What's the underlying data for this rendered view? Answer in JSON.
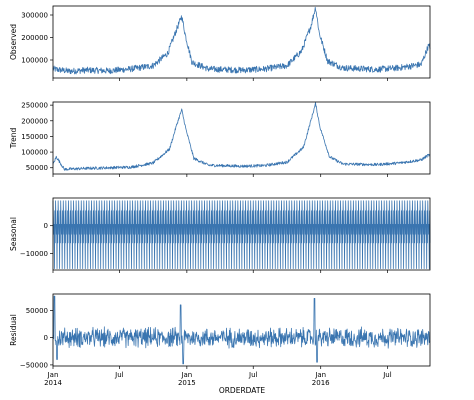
{
  "chart_data": [
    {
      "type": "line",
      "ylabel": "Observed",
      "ylim": [
        20000,
        340000
      ],
      "yticks": [
        100000,
        200000,
        300000
      ],
      "ytick_labels": [
        "100000",
        "200000",
        "300000"
      ],
      "series": [
        {
          "key_points": [
            [
              "2014-01-01",
              60000
            ],
            [
              "2014-02-15",
              50000
            ],
            [
              "2014-04-01",
              55000
            ],
            [
              "2014-06-01",
              52000
            ],
            [
              "2014-08-01",
              60000
            ],
            [
              "2014-10-01",
              75000
            ],
            [
              "2014-11-10",
              130000
            ],
            [
              "2014-12-05",
              240000
            ],
            [
              "2014-12-18",
              295000
            ],
            [
              "2014-12-28",
              210000
            ],
            [
              "2015-01-15",
              90000
            ],
            [
              "2015-03-01",
              60000
            ],
            [
              "2015-06-01",
              55000
            ],
            [
              "2015-08-01",
              60000
            ],
            [
              "2015-10-01",
              75000
            ],
            [
              "2015-11-10",
              140000
            ],
            [
              "2015-12-05",
              250000
            ],
            [
              "2015-12-18",
              335000
            ],
            [
              "2015-12-28",
              220000
            ],
            [
              "2016-01-20",
              95000
            ],
            [
              "2016-03-01",
              65000
            ],
            [
              "2016-06-01",
              58000
            ],
            [
              "2016-08-01",
              65000
            ],
            [
              "2016-10-01",
              80000
            ],
            [
              "2016-10-20",
              160000
            ]
          ],
          "noise": 28000
        }
      ]
    },
    {
      "type": "line",
      "ylabel": "Trend",
      "ylim": [
        30000,
        260000
      ],
      "yticks": [
        50000,
        100000,
        150000,
        200000,
        250000
      ],
      "ytick_labels": [
        "50000",
        "100000",
        "150000",
        "200000",
        "250000"
      ],
      "series": [
        {
          "key_points": [
            [
              "2014-01-01",
              60000
            ],
            [
              "2014-01-10",
              85000
            ],
            [
              "2014-02-01",
              45000
            ],
            [
              "2014-04-01",
              48000
            ],
            [
              "2014-06-01",
              50000
            ],
            [
              "2014-08-01",
              52000
            ],
            [
              "2014-10-01",
              65000
            ],
            [
              "2014-11-15",
              110000
            ],
            [
              "2014-12-05",
              190000
            ],
            [
              "2014-12-18",
              235000
            ],
            [
              "2014-12-30",
              170000
            ],
            [
              "2015-01-20",
              80000
            ],
            [
              "2015-03-01",
              58000
            ],
            [
              "2015-06-01",
              55000
            ],
            [
              "2015-08-01",
              57000
            ],
            [
              "2015-10-01",
              68000
            ],
            [
              "2015-11-15",
              115000
            ],
            [
              "2015-12-05",
              200000
            ],
            [
              "2015-12-18",
              255000
            ],
            [
              "2015-12-30",
              180000
            ],
            [
              "2016-01-25",
              85000
            ],
            [
              "2016-03-01",
              62000
            ],
            [
              "2016-06-01",
              60000
            ],
            [
              "2016-08-01",
              65000
            ],
            [
              "2016-10-01",
              75000
            ],
            [
              "2016-10-20",
              90000
            ]
          ],
          "noise": 9000
        }
      ]
    },
    {
      "type": "line",
      "ylabel": "Seasonal",
      "ylim": [
        -16000,
        10000
      ],
      "yticks": [
        0,
        -10000
      ],
      "ytick_labels": [
        "0",
        "−10000"
      ],
      "series": [
        {
          "pattern": "periodic",
          "period_days": 7,
          "max": 9000,
          "min": -15500
        }
      ]
    },
    {
      "type": "line",
      "ylabel": "Residual",
      "ylim": [
        -52000,
        80000
      ],
      "yticks": [
        50000,
        0,
        -50000
      ],
      "ytick_labels": [
        "50000",
        "0",
        "−50000"
      ],
      "series": [
        {
          "pattern": "noise",
          "amplitude": 18000,
          "peaks": [
            [
              "2014-01-05",
              76000
            ],
            [
              "2014-01-12",
              -40000
            ],
            [
              "2014-12-15",
              60000
            ],
            [
              "2014-12-22",
              -48000
            ],
            [
              "2015-12-15",
              72000
            ],
            [
              "2015-12-22",
              -45000
            ]
          ]
        }
      ]
    }
  ],
  "x_axis": {
    "range": [
      "2014-01-01",
      "2016-10-25"
    ],
    "ticks": [
      {
        "date": "2014-01-01",
        "label": "Jan",
        "sublabel": "2014"
      },
      {
        "date": "2014-07-01",
        "label": "Jul",
        "sublabel": ""
      },
      {
        "date": "2015-01-01",
        "label": "Jan",
        "sublabel": "2015"
      },
      {
        "date": "2015-07-01",
        "label": "Jul",
        "sublabel": ""
      },
      {
        "date": "2016-01-01",
        "label": "Jan",
        "sublabel": "2016"
      },
      {
        "date": "2016-07-01",
        "label": "Jul",
        "sublabel": ""
      }
    ],
    "xlabel": "ORDERDATE"
  },
  "colors": {
    "line": "#3a75b0"
  }
}
